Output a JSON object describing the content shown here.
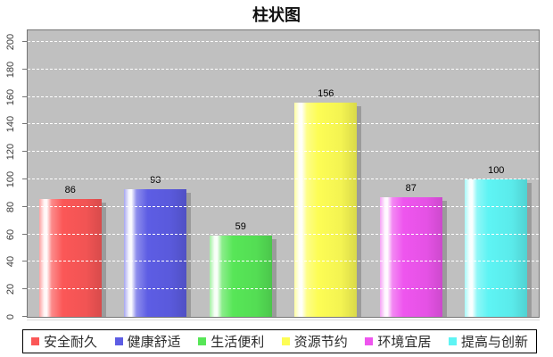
{
  "title": "柱状图",
  "chart_data": {
    "type": "bar",
    "title": "柱状图",
    "categories": [
      "安全耐久",
      "健康舒适",
      "生活便利",
      "资源节约",
      "环境宜居",
      "提高与创新"
    ],
    "values": [
      86,
      93,
      59,
      156,
      87,
      100
    ],
    "colors": [
      "#fb5757",
      "#5d5de4",
      "#57e657",
      "#fdfd55",
      "#ee55ee",
      "#5ef4f4"
    ],
    "xlabel": "",
    "ylabel": "",
    "ylim": [
      0,
      200
    ],
    "y_ticks": [
      0,
      20,
      40,
      60,
      80,
      100,
      120,
      140,
      160,
      180,
      200
    ],
    "grid": true,
    "gridline_color": "#ffffff",
    "plot_background": "#c0c0c0",
    "bar_shadow_color": "#9b9b9b",
    "legend_position": "bottom",
    "legend": [
      "安全耐久",
      "健康舒适",
      "生活便利",
      "资源节约",
      "环境宜居",
      "提高与创新"
    ]
  }
}
